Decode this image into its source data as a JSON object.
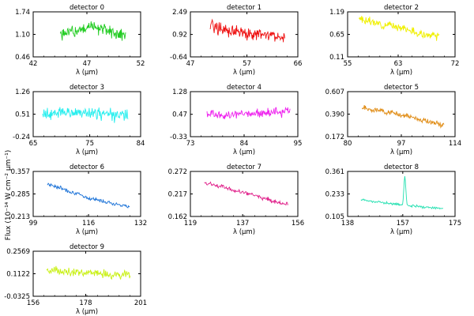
{
  "figure": {
    "ylabel": "Flux (10⁻¹⁴ W cm⁻² μm⁻¹)"
  },
  "chart_data": [
    {
      "type": "line",
      "title": "detector 0",
      "xlabel": "λ (μm)",
      "color": "#22cc22",
      "xlim": [
        42,
        52
      ],
      "ylim": [
        0.46,
        1.74
      ],
      "xticks": [
        "42",
        "47",
        "52"
      ],
      "yticks": [
        "0.46",
        "1.10",
        "1.74"
      ],
      "xrange": [
        44.5,
        50.6
      ],
      "shape": [
        1.08,
        1.2,
        1.32,
        1.22,
        1.02
      ],
      "noise": 0.18,
      "seed": 1
    },
    {
      "type": "line",
      "title": "detector 1",
      "xlabel": "λ (μm)",
      "color": "#ee1111",
      "xlim": [
        47,
        66
      ],
      "ylim": [
        -0.64,
        2.49
      ],
      "xticks": [
        "47",
        "57",
        "66"
      ],
      "yticks": [
        "-0.64",
        "0.92",
        "2.49"
      ],
      "xrange": [
        50.5,
        63.7
      ],
      "shape": [
        1.65,
        1.15,
        0.95,
        0.85,
        0.8
      ],
      "noise": 0.45,
      "seed": 2
    },
    {
      "type": "line",
      "title": "detector 2",
      "xlabel": "λ (μm)",
      "color": "#f0f000",
      "xlim": [
        55,
        72
      ],
      "ylim": [
        0.11,
        1.19
      ],
      "xticks": [
        "55",
        "63",
        "72"
      ],
      "yticks": [
        "0.11",
        "0.65",
        "1.19"
      ],
      "xrange": [
        56.8,
        69.5
      ],
      "shape": [
        1.02,
        0.9,
        0.84,
        0.66,
        0.6
      ],
      "noise": 0.09,
      "seed": 3
    },
    {
      "type": "line",
      "title": "detector 3",
      "xlabel": "λ (μm)",
      "color": "#22eeee",
      "xlim": [
        65,
        84
      ],
      "ylim": [
        -0.24,
        1.26
      ],
      "xticks": [
        "65",
        "75",
        "84"
      ],
      "yticks": [
        "-0.24",
        "0.51",
        "1.26"
      ],
      "xrange": [
        66.6,
        81.8
      ],
      "shape": [
        0.52,
        0.58,
        0.54,
        0.5,
        0.46
      ],
      "noise": 0.2,
      "seed": 4
    },
    {
      "type": "line",
      "title": "detector 4",
      "xlabel": "λ (μm)",
      "color": "#ee22ee",
      "xlim": [
        73,
        95
      ],
      "ylim": [
        -0.33,
        1.28
      ],
      "xticks": [
        "73",
        "84",
        "95"
      ],
      "yticks": [
        "-0.33",
        "0.47",
        "1.28"
      ],
      "xrange": [
        76.4,
        93.4
      ],
      "shape": [
        0.46,
        0.44,
        0.47,
        0.52,
        0.6
      ],
      "noise": 0.16,
      "seed": 5
    },
    {
      "type": "line",
      "title": "detector 5",
      "xlabel": "λ (μm)",
      "color": "#e08a10",
      "xlim": [
        80,
        114
      ],
      "ylim": [
        0.172,
        0.607
      ],
      "xticks": [
        "80",
        "97",
        "114"
      ],
      "yticks": [
        "0.172",
        "0.390",
        "0.607"
      ],
      "xrange": [
        84.6,
        110.5
      ],
      "shape": [
        0.45,
        0.42,
        0.38,
        0.33,
        0.28
      ],
      "noise": 0.025,
      "seed": 6
    },
    {
      "type": "line",
      "title": "detector 6",
      "xlabel": "λ (μm)",
      "color": "#1e74d8",
      "xlim": [
        99,
        132
      ],
      "ylim": [
        0.213,
        0.357
      ],
      "xticks": [
        "99",
        "116",
        "132"
      ],
      "yticks": [
        "0.213",
        "0.285",
        "0.357"
      ],
      "xrange": [
        103.3,
        128.6
      ],
      "shape": [
        0.318,
        0.296,
        0.272,
        0.258,
        0.244
      ],
      "noise": 0.006,
      "seed": 7
    },
    {
      "type": "line",
      "title": "detector 7",
      "xlabel": "λ (μm)",
      "color": "#e0208a",
      "xlim": [
        119,
        156
      ],
      "ylim": [
        0.162,
        0.272
      ],
      "xticks": [
        "119",
        "137",
        "156"
      ],
      "yticks": [
        "0.162",
        "0.217",
        "0.272"
      ],
      "xrange": [
        123.8,
        152.7
      ],
      "shape": [
        0.244,
        0.232,
        0.218,
        0.204,
        0.19
      ],
      "noise": 0.005,
      "seed": 8
    },
    {
      "type": "line",
      "title": "detector 8",
      "xlabel": "λ (μm)",
      "color": "#22e0b0",
      "xlim": [
        138,
        175
      ],
      "ylim": [
        0.105,
        0.361
      ],
      "xticks": [
        "138",
        "157",
        "175"
      ],
      "yticks": [
        "0.105",
        "0.233",
        "0.361"
      ],
      "xrange": [
        142.6,
        170.9
      ],
      "shape": [
        0.2,
        0.185,
        0.17,
        0.158,
        0.15
      ],
      "noise": 0.007,
      "seed": 9,
      "peak": {
        "x": 157.7,
        "y": 0.335,
        "width": 0.45
      }
    },
    {
      "type": "line",
      "title": "detector 9",
      "xlabel": "λ (μm)",
      "color": "#c8f010",
      "xlim": [
        156,
        201
      ],
      "ylim": [
        -0.0325,
        0.2569
      ],
      "xticks": [
        "156",
        "178",
        "201"
      ],
      "yticks": [
        "-0.0325",
        "0.1122",
        "0.2569"
      ],
      "xrange": [
        161.6,
        196.6
      ],
      "shape": [
        0.135,
        0.128,
        0.115,
        0.108,
        0.1
      ],
      "noise": 0.026,
      "seed": 10
    }
  ]
}
